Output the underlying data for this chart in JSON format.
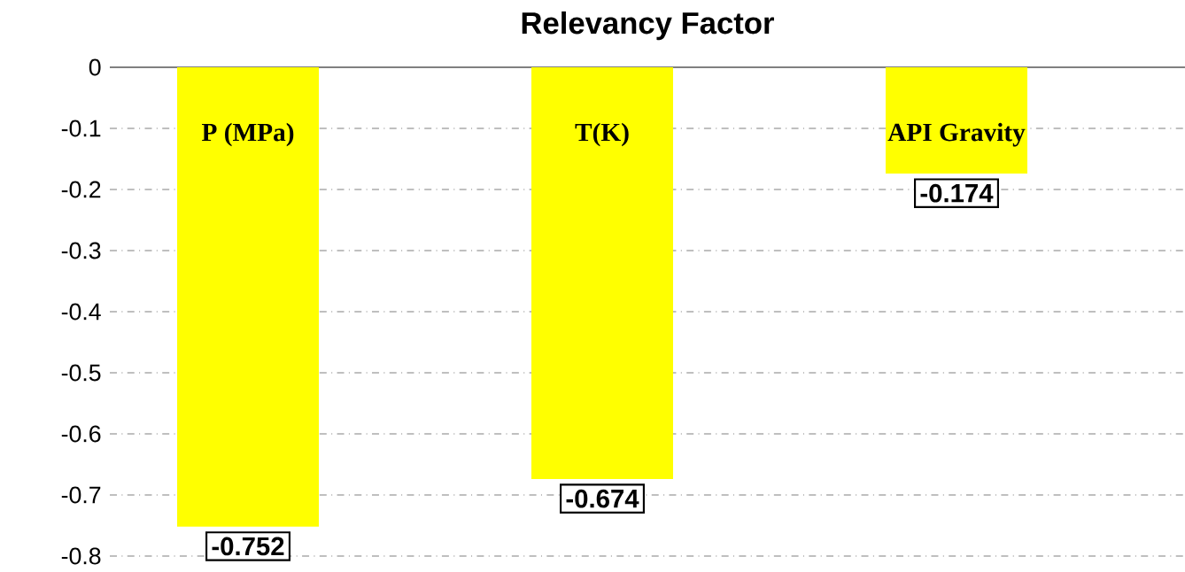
{
  "chart_data": {
    "type": "bar",
    "title": "Relevancy Factor",
    "categories": [
      "P (MPa)",
      "T(K)",
      "API Gravity"
    ],
    "values": [
      -0.752,
      -0.674,
      -0.174
    ],
    "color": "#ffff00",
    "ylim": [
      -0.8,
      0
    ],
    "yticks": [
      0,
      -0.1,
      -0.2,
      -0.3,
      -0.4,
      -0.5,
      -0.6,
      -0.7,
      -0.8
    ],
    "grid": "y",
    "data_labels": true
  }
}
